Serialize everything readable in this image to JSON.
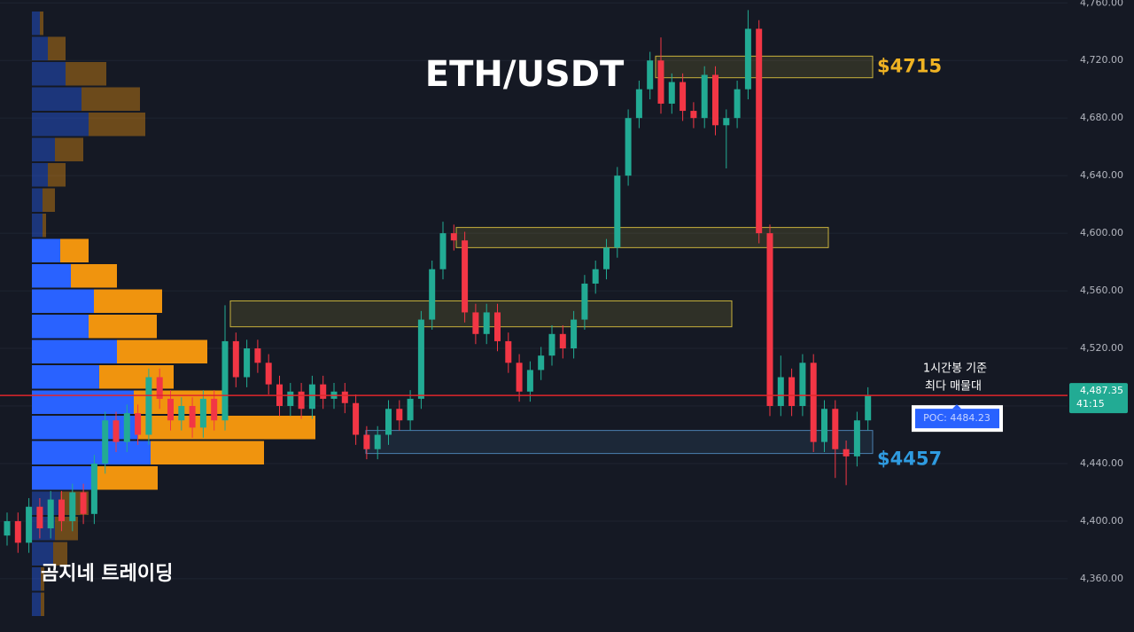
{
  "chart_data": {
    "type": "candlestick",
    "title": "ETH/USDT",
    "watermark": "곰지네 트레이딩",
    "up_color": "#22ab94",
    "down_color": "#f23645",
    "ylim": [
      4323,
      4762
    ],
    "yticks": [
      {
        "value": 4360,
        "label": "4,360.00"
      },
      {
        "value": 4400,
        "label": "4,400.00"
      },
      {
        "value": 4440,
        "label": "4,440.00"
      },
      {
        "value": 4480,
        "label": "4,480.00"
      },
      {
        "value": 4520,
        "label": "4,520.00"
      },
      {
        "value": 4560,
        "label": "4,560.00"
      },
      {
        "value": 4600,
        "label": "4,600.00"
      },
      {
        "value": 4640,
        "label": "4,640.00"
      },
      {
        "value": 4680,
        "label": "4,680.00"
      },
      {
        "value": 4720,
        "label": "4,720.00"
      },
      {
        "value": 4760,
        "label": "4,760.00"
      }
    ],
    "grid": true,
    "open": [
      4390,
      4400,
      4385,
      4410,
      4395,
      4415,
      4400,
      4420,
      4405,
      4440,
      4470,
      4455,
      4475,
      4460,
      4500,
      4485,
      4470,
      4480,
      4465,
      4485,
      4470,
      4525,
      4500,
      4520,
      4510,
      4495,
      4480,
      4490,
      4478,
      4495,
      4485,
      4490,
      4482,
      4460,
      4450,
      4460,
      4478,
      4470,
      4485,
      4540,
      4575,
      4600,
      4595,
      4545,
      4530,
      4545,
      4525,
      4510,
      4490,
      4505,
      4515,
      4530,
      4520,
      4540,
      4565,
      4575,
      4590,
      4640,
      4680,
      4700,
      4720,
      4690,
      4705,
      4685,
      4680,
      4710,
      4675,
      4680,
      4700,
      4742,
      4600,
      4480,
      4500,
      4480,
      4510,
      4455,
      4478,
      4450,
      4445,
      4470
    ],
    "high": [
      4406,
      4406,
      4416,
      4416,
      4421,
      4421,
      4426,
      4426,
      4446,
      4476,
      4476,
      4481,
      4481,
      4506,
      4506,
      4491,
      4486,
      4486,
      4491,
      4491,
      4550,
      4531,
      4526,
      4526,
      4516,
      4501,
      4496,
      4496,
      4501,
      4501,
      4496,
      4496,
      4488,
      4466,
      4466,
      4484,
      4484,
      4491,
      4546,
      4581,
      4608,
      4606,
      4601,
      4551,
      4551,
      4551,
      4531,
      4516,
      4511,
      4521,
      4536,
      4536,
      4546,
      4571,
      4581,
      4596,
      4646,
      4686,
      4706,
      4726,
      4736,
      4711,
      4711,
      4691,
      4716,
      4716,
      4686,
      4706,
      4755,
      4748,
      4606,
      4515,
      4506,
      4516,
      4516,
      4484,
      4484,
      4456,
      4476,
      4493
    ],
    "low": [
      4383,
      4378,
      4378,
      4388,
      4388,
      4393,
      4393,
      4398,
      4398,
      4433,
      4448,
      4448,
      4453,
      4453,
      4478,
      4463,
      4463,
      4458,
      4458,
      4463,
      4463,
      4493,
      4493,
      4503,
      4488,
      4473,
      4473,
      4471,
      4471,
      4478,
      4478,
      4475,
      4453,
      4443,
      4443,
      4453,
      4463,
      4463,
      4478,
      4533,
      4568,
      4588,
      4538,
      4523,
      4523,
      4518,
      4503,
      4483,
      4483,
      4498,
      4508,
      4513,
      4513,
      4533,
      4558,
      4568,
      4583,
      4633,
      4673,
      4693,
      4683,
      4683,
      4678,
      4673,
      4673,
      4668,
      4645,
      4673,
      4693,
      4593,
      4473,
      4473,
      4473,
      4473,
      4448,
      4448,
      4430,
      4425,
      4438,
      4463
    ],
    "close": [
      4400,
      4385,
      4410,
      4395,
      4415,
      4400,
      4420,
      4405,
      4440,
      4470,
      4455,
      4475,
      4460,
      4500,
      4485,
      4470,
      4480,
      4465,
      4485,
      4470,
      4525,
      4500,
      4520,
      4510,
      4495,
      4480,
      4490,
      4478,
      4495,
      4485,
      4490,
      4482,
      4460,
      4450,
      4460,
      4478,
      4470,
      4485,
      4540,
      4575,
      4600,
      4595,
      4545,
      4530,
      4545,
      4525,
      4510,
      4490,
      4505,
      4515,
      4530,
      4520,
      4540,
      4565,
      4575,
      4590,
      4640,
      4680,
      4700,
      4720,
      4690,
      4705,
      4685,
      4680,
      4710,
      4675,
      4680,
      4700,
      4742,
      4600,
      4480,
      4500,
      4480,
      4510,
      4455,
      4478,
      4450,
      4445,
      4470,
      4487.35
    ],
    "volume_profile": {
      "buy_color": "#2962ff",
      "sell_color": "#f0940e",
      "buy": [
        9,
        18,
        38,
        56,
        64,
        26,
        18,
        12,
        12,
        32,
        44,
        70,
        64,
        96,
        76,
        115,
        120,
        134,
        72,
        32,
        26,
        24,
        10,
        10
      ],
      "sell": [
        4,
        20,
        46,
        66,
        64,
        32,
        20,
        14,
        4,
        32,
        52,
        77,
        77,
        102,
        84,
        100,
        200,
        128,
        70,
        32,
        26,
        16,
        4,
        4
      ]
    },
    "zones": [
      {
        "low": 4708,
        "high": 4723,
        "color": "#c9b23c",
        "label": "$4715"
      },
      {
        "low": 4590,
        "high": 4604,
        "color": "#c9b23c"
      },
      {
        "low": 4535,
        "high": 4553,
        "color": "#c9b23c"
      },
      {
        "low": 4447,
        "high": 4463,
        "color": "#4a7fb0",
        "label": "$4457"
      }
    ],
    "current_price": {
      "value": 4487.35,
      "label": "4,487.35",
      "color": "#e0262b"
    },
    "countdown": "41:15",
    "poc": {
      "value": 4484.23,
      "label": "POC: 4484.23"
    },
    "annotation": [
      "1시간봉 기준",
      "최다 매물대"
    ]
  }
}
